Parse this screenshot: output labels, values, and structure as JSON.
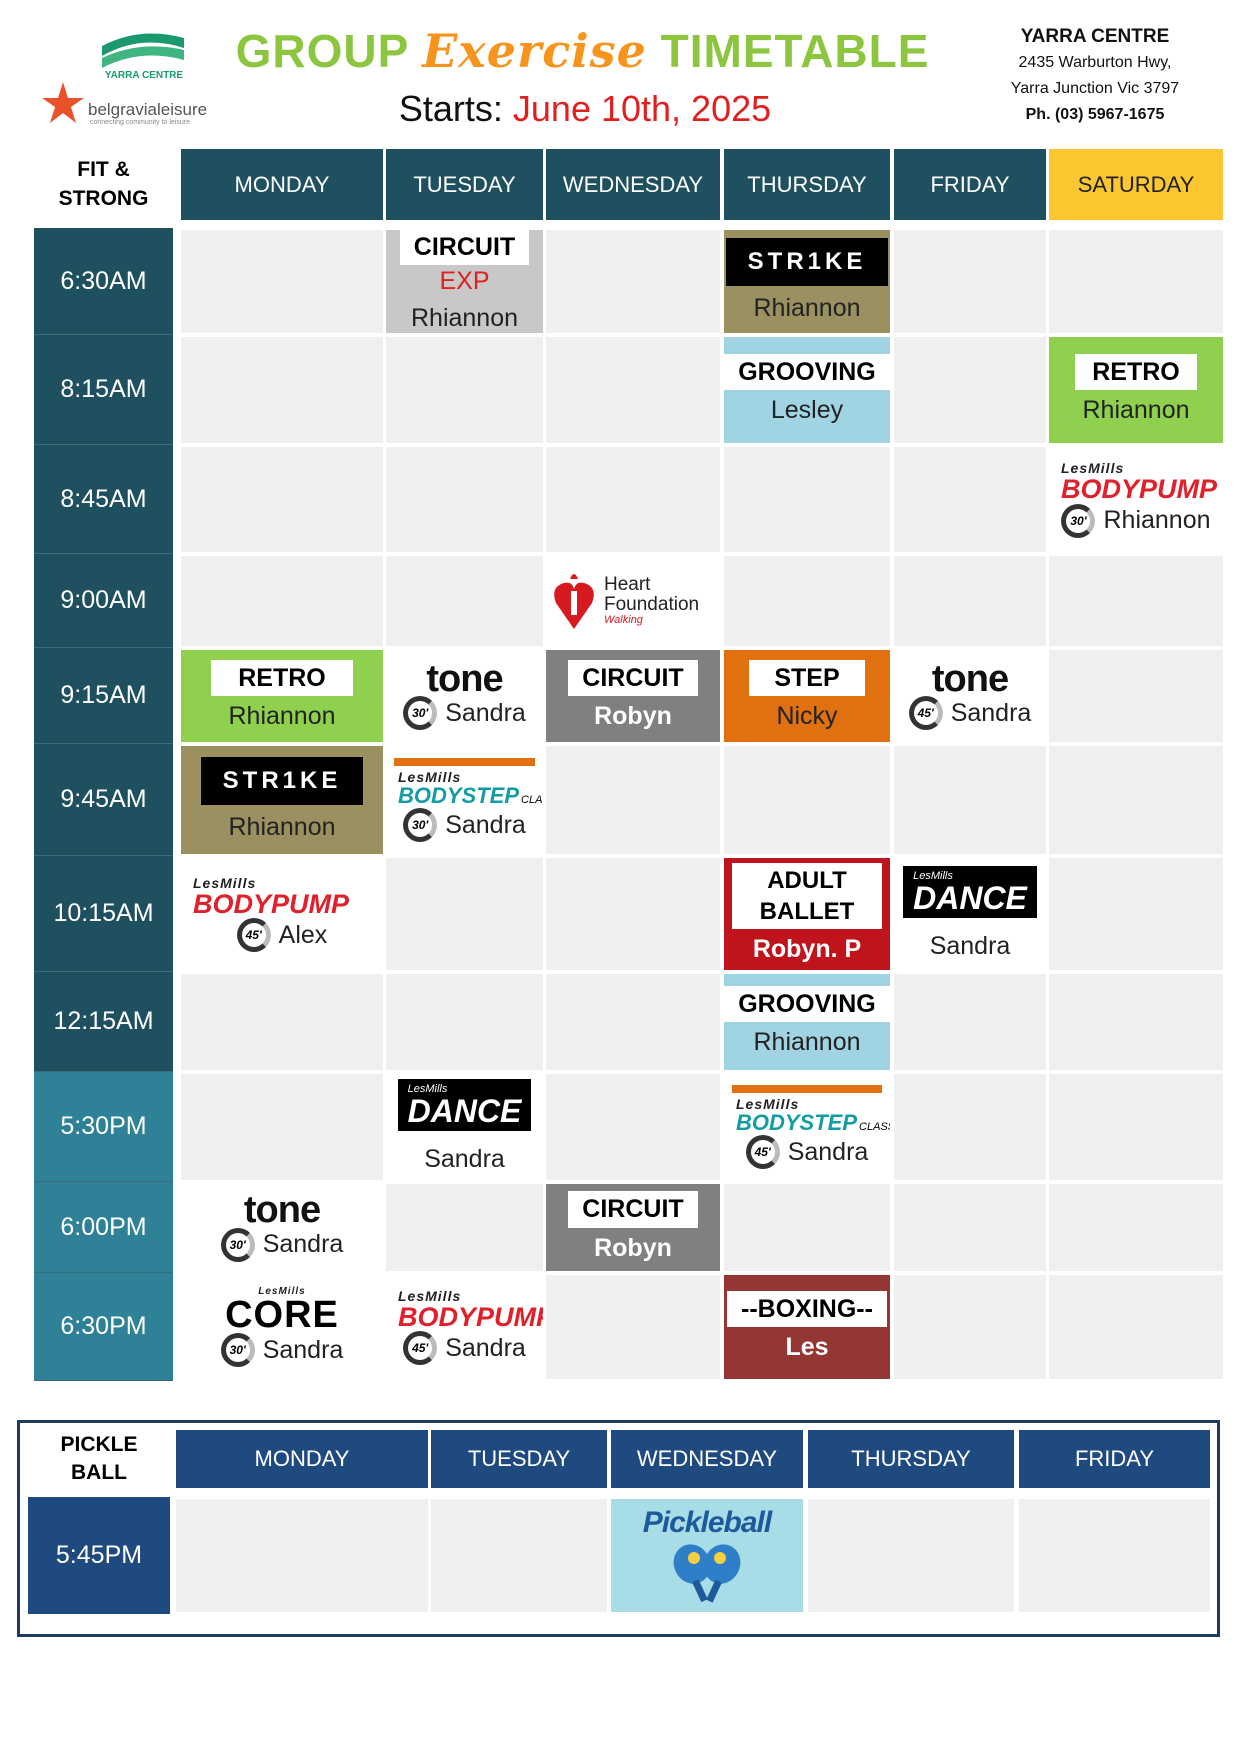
{
  "header": {
    "centre_logo": "YARRA CENTRE",
    "brand": "belgravialeisure",
    "tagline": "connecting community to leisure",
    "title": [
      "GROUP",
      "Exercise",
      "TIMETABLE"
    ],
    "starts_label": "Starts:",
    "starts_date": "June 10th, 2025",
    "address": [
      "YARRA CENTRE",
      "2435 Warburton Hwy,",
      "Yarra Junction Vic 3797",
      "Ph. (03) 5967-1675"
    ]
  },
  "fit_table": {
    "corner": "FIT &\nSTRONG",
    "days": [
      "MONDAY",
      "TUESDAY",
      "WEDNESDAY",
      "THURSDAY",
      "FRIDAY",
      "SATURDAY"
    ],
    "rows": [
      {
        "time": "6:30AM",
        "cells": [
          null,
          {
            "kind": "label",
            "bg": "#c8c8c8",
            "name": "CIRCUIT",
            "sub": "EXP",
            "instructor": "Rhiannon"
          },
          null,
          {
            "kind": "strike",
            "bg": "#9b9060",
            "name": "STR1KE",
            "instructor": "Rhiannon"
          },
          null,
          null
        ]
      },
      {
        "time": "8:15AM",
        "cells": [
          null,
          null,
          null,
          {
            "kind": "label",
            "bg": "#a0d4e2",
            "name": "GROOVING",
            "instructor": "Lesley"
          },
          null,
          {
            "kind": "label",
            "bg": "#8fd14f",
            "name": "RETRO",
            "instructor": "Rhiannon"
          }
        ]
      },
      {
        "time": "8:45AM",
        "cells": [
          null,
          null,
          null,
          null,
          null,
          {
            "kind": "lesmills",
            "bg": "#ffffff",
            "brand": "LesMills",
            "name": "BODYPUMP",
            "duration": "30'",
            "instructor": "Rhiannon"
          }
        ]
      },
      {
        "time": "9:00AM",
        "cells": [
          null,
          null,
          {
            "kind": "heart",
            "bg": "#ffffff",
            "name": "Heart Foundation",
            "sub": "Walking"
          },
          null,
          null,
          null
        ]
      },
      {
        "time": "9:15AM",
        "cells": [
          {
            "kind": "label",
            "bg": "#8fd14f",
            "name": "RETRO",
            "instructor": "Rhiannon"
          },
          {
            "kind": "tone",
            "bg": "#ffffff",
            "name": "tone",
            "duration": "30'",
            "instructor": "Sandra"
          },
          {
            "kind": "label",
            "bg": "#808080",
            "name": "CIRCUIT",
            "instructor": "Robyn",
            "text_color": "#ffffff"
          },
          {
            "kind": "label",
            "bg": "#e07010",
            "name": "STEP",
            "instructor": "Nicky"
          },
          {
            "kind": "tone",
            "bg": "#ffffff",
            "name": "tone",
            "duration": "45'",
            "instructor": "Sandra"
          },
          null
        ]
      },
      {
        "time": "9:45AM",
        "cells": [
          {
            "kind": "strike",
            "bg": "#9b9060",
            "name": "STR1KE",
            "instructor": "Rhiannon"
          },
          {
            "kind": "lesmills",
            "bg": "#ffffff",
            "bar": "#e07010",
            "brand": "LesMills",
            "name": "BODYSTEP",
            "sub": "CLASSIC",
            "duration": "30'",
            "instructor": "Sandra"
          },
          null,
          null,
          null,
          null
        ]
      },
      {
        "time": "10:15AM",
        "cells": [
          {
            "kind": "lesmills",
            "bg": "#ffffff",
            "brand": "LesMills",
            "name": "BODYPUMP",
            "duration": "45'",
            "instructor": "Alex"
          },
          null,
          null,
          {
            "kind": "label",
            "bg": "#c0141c",
            "name": "ADULT BALLET",
            "instructor": "Robyn. P",
            "text_color": "#ffffff"
          },
          {
            "kind": "dance",
            "bg": "#ffffff",
            "brand": "LesMills",
            "name": "DANCE",
            "instructor": "Sandra"
          },
          null
        ]
      },
      {
        "time": "12:15AM",
        "cells": [
          null,
          null,
          null,
          {
            "kind": "label",
            "bg": "#a0d4e2",
            "name": "GROOVING",
            "instructor": "Rhiannon"
          },
          null,
          null
        ]
      },
      {
        "time": "5:30PM",
        "cells": [
          null,
          {
            "kind": "dance",
            "bg": "#ffffff",
            "brand": "LesMills",
            "name": "DANCE",
            "instructor": "Sandra"
          },
          null,
          {
            "kind": "lesmills",
            "bg": "#ffffff",
            "bar": "#e07010",
            "brand": "LesMills",
            "name": "BODYSTEP",
            "sub": "CLASSIC",
            "duration": "45'",
            "instructor": "Sandra"
          },
          null,
          null
        ]
      },
      {
        "time": "6:00PM",
        "cells": [
          {
            "kind": "tone",
            "bg": "#ffffff",
            "name": "tone",
            "duration": "30'",
            "instructor": "Sandra"
          },
          null,
          {
            "kind": "label",
            "bg": "#808080",
            "name": "CIRCUIT",
            "instructor": "Robyn",
            "text_color": "#ffffff"
          },
          null,
          null,
          null
        ]
      },
      {
        "time": "6:30PM",
        "cells": [
          {
            "kind": "core",
            "bg": "#ffffff",
            "brand": "LesMills",
            "name": "CORE",
            "duration": "30'",
            "instructor": "Sandra"
          },
          {
            "kind": "lesmills",
            "bg": "#ffffff",
            "brand": "LesMills",
            "name": "BODYPUMP",
            "duration": "45'",
            "instructor": "Sandra"
          },
          null,
          {
            "kind": "label",
            "bg": "#943634",
            "name": "--BOXING--",
            "instructor": "Les",
            "text_color": "#ffffff"
          },
          null,
          null
        ]
      }
    ]
  },
  "pickle_table": {
    "corner": "PICKLE\nBALL",
    "days": [
      "MONDAY",
      "TUESDAY",
      "WEDNESDAY",
      "THURSDAY",
      "FRIDAY"
    ],
    "rows": [
      {
        "time": "5:45PM",
        "cells": [
          null,
          null,
          {
            "kind": "pickleball",
            "bg": "#a8dce6",
            "name": "Pickleball"
          },
          null,
          null
        ]
      }
    ]
  }
}
